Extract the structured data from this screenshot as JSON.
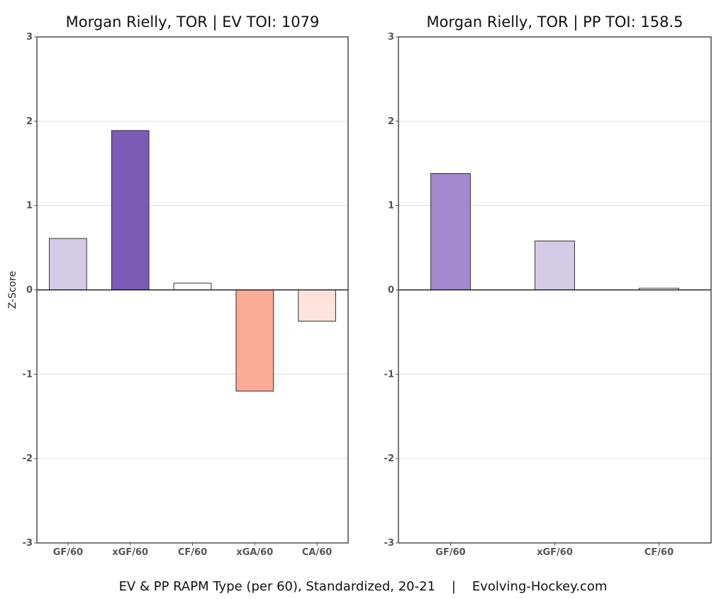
{
  "chart_data": [
    {
      "type": "bar",
      "title": "Morgan Rielly, TOR  |  EV TOI: 1079",
      "ylabel": "Z-Score",
      "ylim": [
        -3,
        3
      ],
      "yticks": [
        -3,
        -2,
        -1,
        0,
        1,
        2,
        3
      ],
      "grid": true,
      "categories": [
        "GF/60",
        "xGF/60",
        "CF/60",
        "xGA/60",
        "CA/60"
      ],
      "values": [
        0.61,
        1.89,
        0.08,
        -1.2,
        -0.37
      ],
      "colors": [
        "#d4cbe6",
        "#7b5bb6",
        "#ffffff",
        "#fbab96",
        "#fde3dc"
      ]
    },
    {
      "type": "bar",
      "title": "Morgan Rielly, TOR  |  PP TOI: 158.5",
      "ylabel": "",
      "ylim": [
        -3,
        3
      ],
      "yticks": [
        -3,
        -2,
        -1,
        0,
        1,
        2,
        3
      ],
      "grid": true,
      "categories": [
        "GF/60",
        "xGF/60",
        "CF/60"
      ],
      "values": [
        1.38,
        0.58,
        0.02
      ],
      "colors": [
        "#a288cc",
        "#d4cbe6",
        "#ffffff"
      ]
    }
  ],
  "caption": "EV & PP RAPM Type (per 60), Standardized, 20-21    |    Evolving-Hockey.com"
}
